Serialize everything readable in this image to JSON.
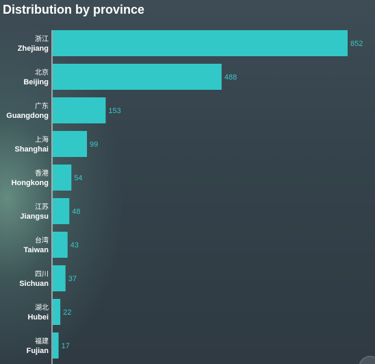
{
  "chart_data": {
    "type": "bar",
    "orientation": "horizontal",
    "title": "Distribution by province",
    "categories": [
      {
        "zh": "浙江",
        "en": "Zhejiang"
      },
      {
        "zh": "北京",
        "en": "Beijing"
      },
      {
        "zh": "广东",
        "en": "Guangdong"
      },
      {
        "zh": "上海",
        "en": "Shanghai"
      },
      {
        "zh": "香港",
        "en": "Hongkong"
      },
      {
        "zh": "江苏",
        "en": "Jiangsu"
      },
      {
        "zh": "台湾",
        "en": "Taiwan"
      },
      {
        "zh": "四川",
        "en": "Sichuan"
      },
      {
        "zh": "湖北",
        "en": "Hubei"
      },
      {
        "zh": "福建",
        "en": "Fujian"
      }
    ],
    "values": [
      852,
      488,
      153,
      99,
      54,
      48,
      43,
      37,
      22,
      17
    ],
    "xlim": [
      0,
      852
    ],
    "xlabel": "",
    "ylabel": "",
    "grid": false,
    "data_labels": true,
    "colors": {
      "bar": "#32c8c8",
      "value_label": "#3cc8c8",
      "axis_line": "#ffffff"
    }
  }
}
